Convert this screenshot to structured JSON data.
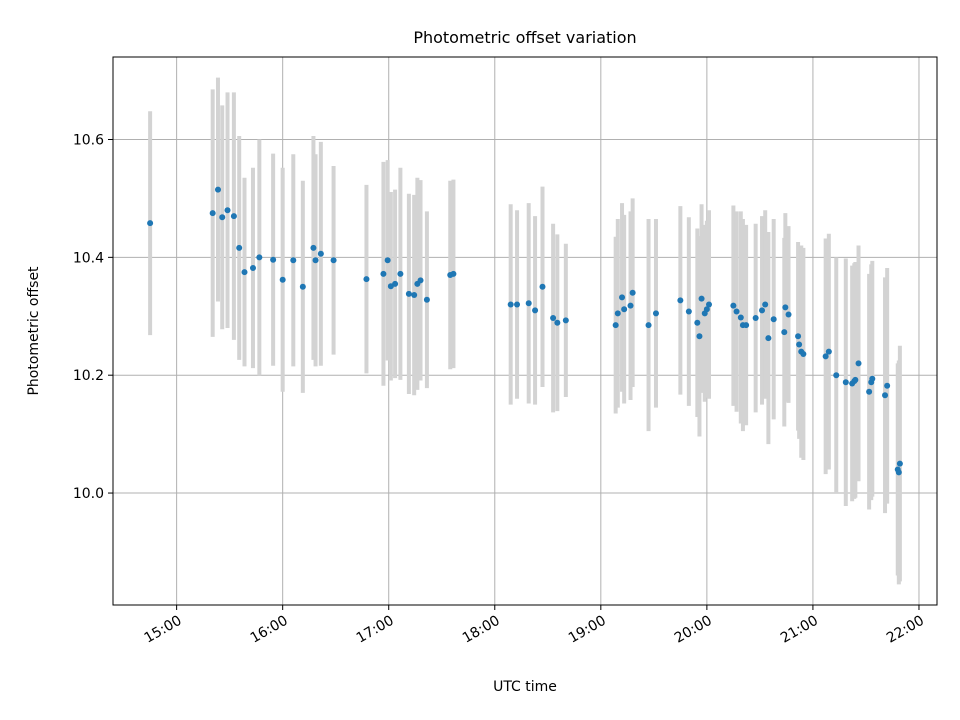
{
  "chart_data": {
    "type": "scatter",
    "title": "Photometric offset variation",
    "xlabel": "UTC time",
    "ylabel": "Photometric offset",
    "x_unit": "UTC hours",
    "xlim": [
      14.4,
      22.17
    ],
    "ylim": [
      9.81,
      10.74
    ],
    "x_ticks": [
      {
        "value": 15,
        "label": "15:00"
      },
      {
        "value": 16,
        "label": "16:00"
      },
      {
        "value": 17,
        "label": "17:00"
      },
      {
        "value": 18,
        "label": "18:00"
      },
      {
        "value": 19,
        "label": "19:00"
      },
      {
        "value": 20,
        "label": "20:00"
      },
      {
        "value": 21,
        "label": "21:00"
      },
      {
        "value": 22,
        "label": "22:00"
      }
    ],
    "y_ticks": [
      {
        "value": 10.0,
        "label": "10.0"
      },
      {
        "value": 10.2,
        "label": "10.2"
      },
      {
        "value": 10.4,
        "label": "10.4"
      },
      {
        "value": 10.6,
        "label": "10.6"
      }
    ],
    "grid": true,
    "colors": {
      "point": "#1f77b4",
      "errorbar": "#d3d3d3",
      "grid": "#b0b0b0",
      "axes": "#000000"
    },
    "points": [
      [
        14.75,
        10.458,
        0.19
      ],
      [
        15.34,
        10.475,
        0.21
      ],
      [
        15.39,
        10.515,
        0.19
      ],
      [
        15.43,
        10.468,
        0.19
      ],
      [
        15.48,
        10.48,
        0.2
      ],
      [
        15.54,
        10.47,
        0.21
      ],
      [
        15.59,
        10.416,
        0.19
      ],
      [
        15.64,
        10.375,
        0.16
      ],
      [
        15.72,
        10.382,
        0.17
      ],
      [
        15.78,
        10.4,
        0.2
      ],
      [
        15.91,
        10.396,
        0.18
      ],
      [
        16.0,
        10.362,
        0.19
      ],
      [
        16.1,
        10.395,
        0.18
      ],
      [
        16.19,
        10.35,
        0.18
      ],
      [
        16.29,
        10.416,
        0.19
      ],
      [
        16.31,
        10.395,
        0.18
      ],
      [
        16.36,
        10.406,
        0.19
      ],
      [
        16.48,
        10.395,
        0.16
      ],
      [
        16.79,
        10.363,
        0.16
      ],
      [
        16.95,
        10.372,
        0.19
      ],
      [
        16.99,
        10.395,
        0.17
      ],
      [
        17.02,
        10.351,
        0.16
      ],
      [
        17.06,
        10.355,
        0.16
      ],
      [
        17.11,
        10.372,
        0.18
      ],
      [
        17.19,
        10.338,
        0.17
      ],
      [
        17.24,
        10.336,
        0.17
      ],
      [
        17.27,
        10.355,
        0.18
      ],
      [
        17.3,
        10.361,
        0.17
      ],
      [
        17.36,
        10.328,
        0.15
      ],
      [
        17.58,
        10.37,
        0.16
      ],
      [
        17.61,
        10.372,
        0.16
      ],
      [
        18.15,
        10.32,
        0.17
      ],
      [
        18.21,
        10.32,
        0.16
      ],
      [
        18.32,
        10.322,
        0.17
      ],
      [
        18.38,
        10.31,
        0.16
      ],
      [
        18.45,
        10.35,
        0.17
      ],
      [
        18.55,
        10.297,
        0.16
      ],
      [
        18.59,
        10.289,
        0.15
      ],
      [
        18.67,
        10.293,
        0.13
      ],
      [
        19.14,
        10.285,
        0.15
      ],
      [
        19.16,
        10.305,
        0.16
      ],
      [
        19.2,
        10.332,
        0.16
      ],
      [
        19.22,
        10.312,
        0.16
      ],
      [
        19.28,
        10.318,
        0.16
      ],
      [
        19.3,
        10.34,
        0.16
      ],
      [
        19.45,
        10.285,
        0.18
      ],
      [
        19.52,
        10.305,
        0.16
      ],
      [
        19.75,
        10.327,
        0.16
      ],
      [
        19.83,
        10.308,
        0.16
      ],
      [
        19.91,
        10.289,
        0.16
      ],
      [
        19.93,
        10.266,
        0.17
      ],
      [
        19.95,
        10.33,
        0.16
      ],
      [
        19.98,
        10.305,
        0.15
      ],
      [
        20.0,
        10.312,
        0.15
      ],
      [
        20.02,
        10.32,
        0.16
      ],
      [
        20.25,
        10.318,
        0.17
      ],
      [
        20.28,
        10.308,
        0.17
      ],
      [
        20.32,
        10.298,
        0.18
      ],
      [
        20.34,
        10.285,
        0.18
      ],
      [
        20.37,
        10.285,
        0.17
      ],
      [
        20.46,
        10.297,
        0.16
      ],
      [
        20.52,
        10.31,
        0.16
      ],
      [
        20.55,
        10.32,
        0.16
      ],
      [
        20.58,
        10.263,
        0.18
      ],
      [
        20.63,
        10.295,
        0.17
      ],
      [
        20.73,
        10.273,
        0.16
      ],
      [
        20.74,
        10.315,
        0.16
      ],
      [
        20.77,
        10.303,
        0.15
      ],
      [
        20.86,
        10.266,
        0.16
      ],
      [
        20.87,
        10.252,
        0.16
      ],
      [
        20.89,
        10.24,
        0.18
      ],
      [
        20.91,
        10.236,
        0.18
      ],
      [
        21.12,
        10.232,
        0.2
      ],
      [
        21.15,
        10.24,
        0.2
      ],
      [
        21.22,
        10.2,
        0.2
      ],
      [
        21.31,
        10.188,
        0.21
      ],
      [
        21.37,
        10.186,
        0.2
      ],
      [
        21.39,
        10.19,
        0.2
      ],
      [
        21.4,
        10.192,
        0.2
      ],
      [
        21.43,
        10.22,
        0.2
      ],
      [
        21.53,
        10.172,
        0.2
      ],
      [
        21.55,
        10.188,
        0.2
      ],
      [
        21.56,
        10.194,
        0.2
      ],
      [
        21.68,
        10.166,
        0.2
      ],
      [
        21.7,
        10.182,
        0.2
      ],
      [
        21.8,
        10.04,
        0.18
      ],
      [
        21.81,
        10.035,
        0.19
      ],
      [
        21.82,
        10.05,
        0.2
      ]
    ]
  }
}
